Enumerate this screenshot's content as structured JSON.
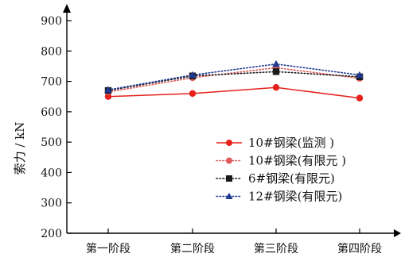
{
  "chart_data": {
    "type": "line",
    "title": "",
    "xlabel": "",
    "ylabel": "索力 / kN",
    "categories": [
      "第一阶段",
      "第二阶段",
      "第三阶段",
      "第四阶段"
    ],
    "ylim": [
      200,
      900
    ],
    "yticks": [
      200,
      300,
      400,
      500,
      600,
      700,
      800,
      900
    ],
    "grid": false,
    "legend_position": "bottom-right",
    "series": [
      {
        "name": "10#钢梁(监测 )",
        "values": [
          650,
          660,
          680,
          645
        ],
        "color": "#e8211c",
        "line_style": "solid",
        "marker": "circle"
      },
      {
        "name": "10#钢梁(有限元 )",
        "values": [
          665,
          712,
          745,
          710
        ],
        "color": "#e05a5a",
        "line_style": "dotted",
        "marker": "circle"
      },
      {
        "name": "6#钢梁(有限元)",
        "values": [
          670,
          718,
          732,
          715
        ],
        "color": "#1a1a1a",
        "line_style": "dotted",
        "marker": "square"
      },
      {
        "name": "12#钢梁(有限元)",
        "values": [
          672,
          721,
          757,
          721
        ],
        "color": "#1f3a93",
        "line_style": "dotted",
        "marker": "triangle"
      }
    ]
  }
}
